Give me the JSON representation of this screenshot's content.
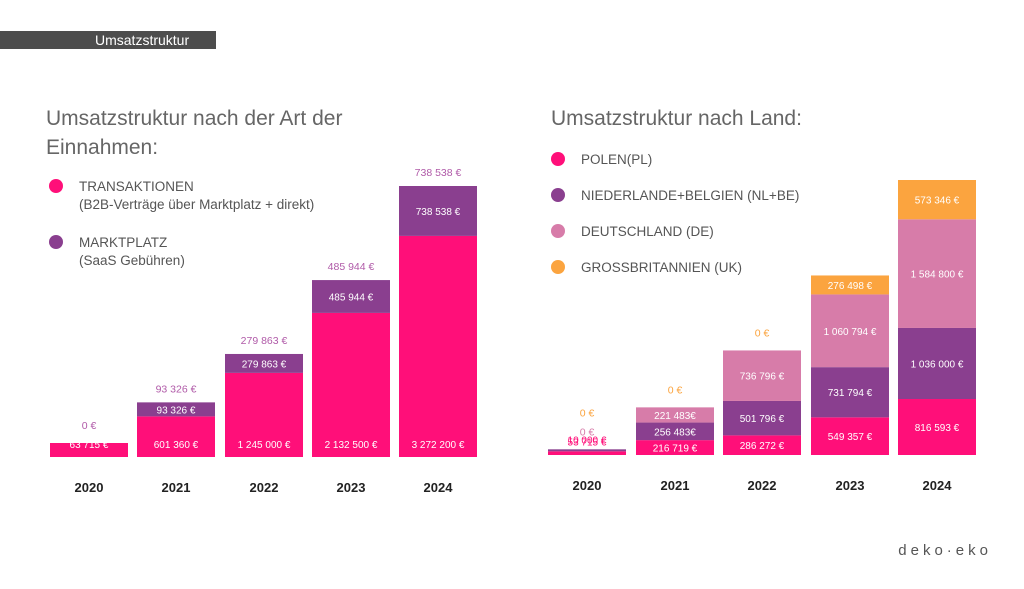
{
  "header": {
    "section_title": "Umsatzstruktur"
  },
  "brand": "deko·eko",
  "colors": {
    "pink": "#ff0f79",
    "purple": "#8a3f8f",
    "mauve": "#d77ca9",
    "orange": "#fba43f",
    "value_label_top": "#b05aa8"
  },
  "left_legend": [
    {
      "label": "TRANSAKTIONEN",
      "sub": "(B2B-Verträge über Marktplatz + direkt)",
      "color": "#ff0f79"
    },
    {
      "label": "MARKTPLATZ",
      "sub": "(SaaS Gebühren)",
      "color": "#8a3f8f"
    }
  ],
  "right_legend": [
    {
      "label": "POLEN(PL)",
      "color": "#ff0f79"
    },
    {
      "label": "NIEDERLANDE+BELGIEN (NL+BE)",
      "color": "#8a3f8f"
    },
    {
      "label": "DEUTSCHLAND (DE)",
      "color": "#d77ca9"
    },
    {
      "label": "GROSSBRITANNIEN (UK)",
      "color": "#fba43f"
    }
  ],
  "chart_data": [
    {
      "type": "bar",
      "stacked": true,
      "title": "Umsatzstruktur nach der Art der Einnahmen:",
      "categories": [
        "2020",
        "2021",
        "2022",
        "2023",
        "2024"
      ],
      "series": [
        {
          "name": "TRANSAKTIONEN",
          "color": "#ff0f79",
          "values": [
            63715,
            601360,
            1245000,
            2132500,
            3272200
          ],
          "labels": [
            "63 715 €",
            "601 360 €",
            "1 245 000 €",
            "2 132 500 €",
            "3 272 200 €"
          ]
        },
        {
          "name": "MARKTPLATZ",
          "color": "#8a3f8f",
          "values": [
            0,
            93326,
            279863,
            485944,
            738538
          ],
          "labels": [
            "0 €",
            "93 326 €",
            "279 863 €",
            "485 944 €",
            "738 538 €"
          ]
        }
      ]
    },
    {
      "type": "bar",
      "stacked": true,
      "title": "Umsatzstruktur nach Land:",
      "categories": [
        "2020",
        "2021",
        "2022",
        "2023",
        "2024"
      ],
      "series": [
        {
          "name": "POLEN(PL)",
          "color": "#ff0f79",
          "values": [
            53715,
            216719,
            286272,
            549357,
            816593
          ],
          "labels": [
            "53 715 €",
            "216 719 €",
            "286 272 €",
            "549 357 €",
            "816 593 €"
          ]
        },
        {
          "name": "NIEDERLANDE+BELGIEN (NL+BE)",
          "color": "#8a3f8f",
          "values": [
            10000,
            256483,
            501796,
            731794,
            1036000
          ],
          "labels": [
            "10 000 €",
            "256 483€",
            "501 796 €",
            "731 794 €",
            "1 036 000 €"
          ]
        },
        {
          "name": "DEUTSCHLAND (DE)",
          "color": "#d77ca9",
          "values": [
            0,
            221483,
            736796,
            1060794,
            1584800
          ],
          "labels": [
            "0 €",
            "221 483€",
            "736 796 €",
            "1 060 794 €",
            "1 584 800 €"
          ]
        },
        {
          "name": "GROSSBRITANNIEN (UK)",
          "color": "#fba43f",
          "values": [
            0,
            0,
            0,
            276498,
            573346
          ],
          "labels": [
            "0 €",
            "0 €",
            "0 €",
            "276 498 €",
            "573 346 €"
          ]
        }
      ]
    }
  ]
}
